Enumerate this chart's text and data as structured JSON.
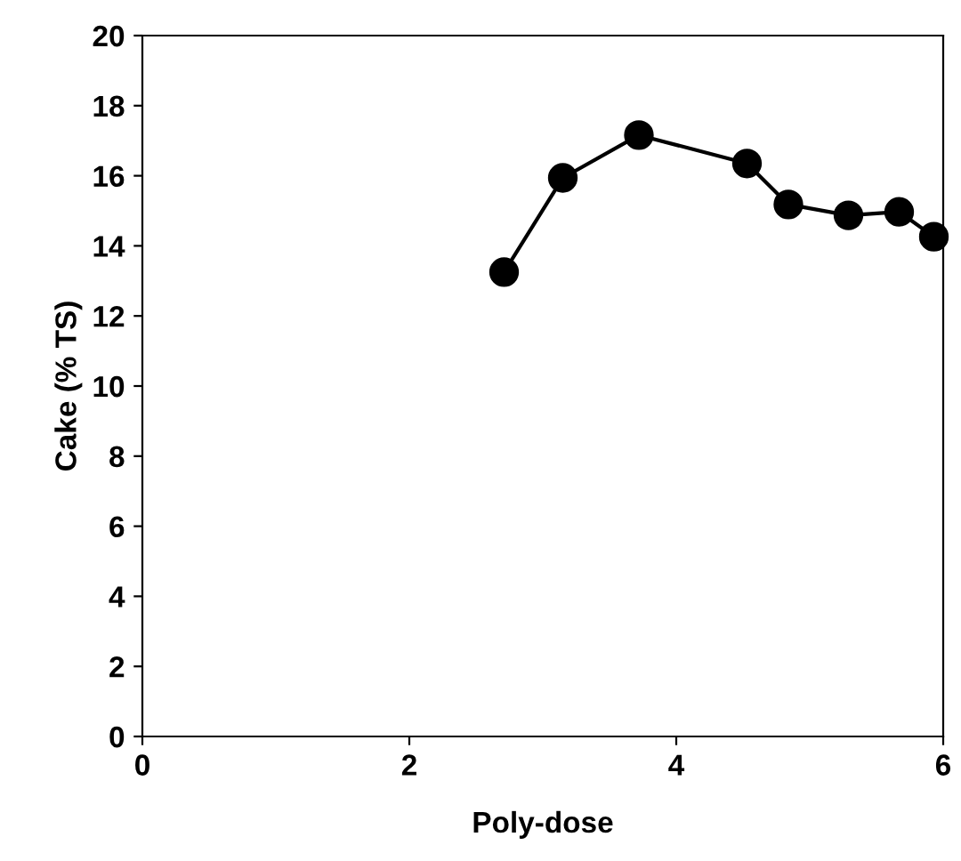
{
  "chart_data": {
    "type": "line",
    "xlabel": "Poly-dose",
    "ylabel": "Cake (% TS)",
    "xlim": [
      0,
      6
    ],
    "xticks": [
      0,
      2,
      4,
      6
    ],
    "ylim": [
      0,
      20
    ],
    "yticks": [
      0,
      2,
      4,
      6,
      8,
      10,
      12,
      14,
      16,
      18,
      20
    ],
    "marker": "circle",
    "line_style": "solid",
    "grid": false,
    "series": [
      {
        "color": "#000000",
        "x": [
          2.71,
          3.15,
          3.72,
          4.53,
          4.84,
          5.29,
          5.67,
          5.93
        ],
        "values": [
          13.25,
          15.94,
          17.16,
          16.35,
          15.18,
          14.87,
          14.97,
          14.26
        ]
      }
    ]
  }
}
